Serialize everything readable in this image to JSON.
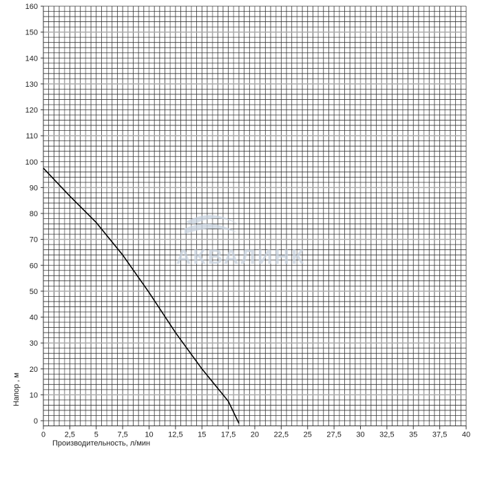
{
  "chart_data": {
    "type": "line",
    "title": "",
    "xlabel": "Производительность, л/мин",
    "ylabel": "Напор , м",
    "xlim": [
      0,
      40
    ],
    "ylim": [
      -2,
      160
    ],
    "grid": true,
    "x_ticks": [
      "0",
      "2,5",
      "5",
      "7,5",
      "10",
      "12,5",
      "15",
      "17,5",
      "20",
      "22,5",
      "25",
      "27,5",
      "30",
      "32,5",
      "35",
      "37,5",
      "40"
    ],
    "y_ticks": [
      "0",
      "10",
      "20",
      "30",
      "40",
      "50",
      "60",
      "70",
      "80",
      "90",
      "100",
      "110",
      "120",
      "130",
      "140",
      "150",
      "160"
    ],
    "watermark": "АКВАЛИНК",
    "series": [
      {
        "x": [
          0,
          2.5,
          5,
          7.5,
          10,
          12.5,
          15,
          17.5,
          18.5
        ],
        "y": [
          97.5,
          86.7,
          76.5,
          64,
          49.5,
          34,
          20,
          7.5,
          -1
        ],
        "color": "#000000"
      }
    ],
    "colors": {
      "grid_dark": "#333333",
      "grid_light": "#aaaaaa",
      "watermark": "#c9d3e0"
    }
  }
}
